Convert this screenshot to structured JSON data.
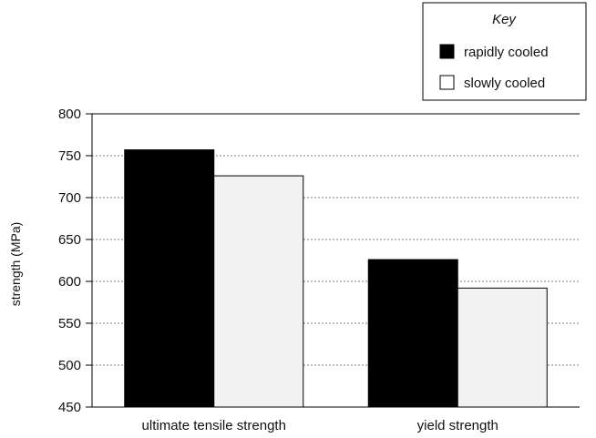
{
  "chart_data": {
    "type": "bar",
    "categories": [
      "ultimate tensile strength",
      "yield strength"
    ],
    "series": [
      {
        "name": "rapidly cooled",
        "values": [
          757,
          626
        ],
        "color": "#000000"
      },
      {
        "name": "slowly cooled",
        "values": [
          726,
          592
        ],
        "color": "#f2f2f2"
      }
    ],
    "ylabel": "strength (MPa)",
    "ylim": [
      450,
      800
    ],
    "yticks": [
      450,
      500,
      550,
      600,
      650,
      700,
      750,
      800
    ],
    "grid": true,
    "legend": {
      "title": "Key",
      "placement": "top-right"
    }
  }
}
